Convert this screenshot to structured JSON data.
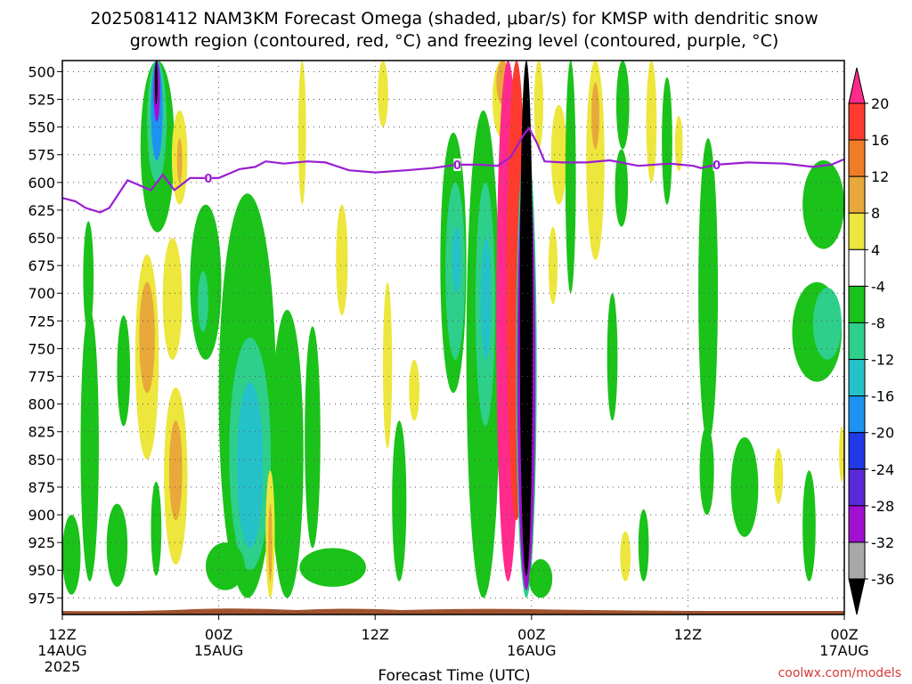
{
  "chart_data": {
    "type": "heatmap",
    "title_line1": "2025081412 NAM3KM Forecast Omega (shaded, μbar/s) for KMSP with dendritic snow",
    "title_line2": "growth region (contoured, red, °C) and freezing level (contoured, purple, °C)",
    "xlabel": "Forecast Time (UTC)",
    "credit": "coolwx.com/models",
    "y_axis": {
      "reversed": true,
      "ylim": [
        490,
        990
      ],
      "ticks": [
        500,
        525,
        550,
        575,
        600,
        625,
        650,
        675,
        700,
        725,
        750,
        775,
        800,
        825,
        850,
        875,
        900,
        925,
        950,
        975
      ]
    },
    "x_axis": {
      "xlim_hours": [
        0,
        60
      ],
      "ticks": [
        {
          "hour": 0,
          "lines": [
            "12Z",
            "14AUG",
            "2025"
          ]
        },
        {
          "hour": 12,
          "lines": [
            "00Z",
            "15AUG"
          ]
        },
        {
          "hour": 24,
          "lines": [
            "12Z"
          ]
        },
        {
          "hour": 36,
          "lines": [
            "00Z",
            "16AUG"
          ]
        },
        {
          "hour": 48,
          "lines": [
            "12Z"
          ]
        },
        {
          "hour": 60,
          "lines": [
            "00Z",
            "17AUG"
          ]
        }
      ]
    },
    "grid": true,
    "colorbar": {
      "labels": [
        "20",
        "16",
        "12",
        "8",
        "4",
        "-4",
        "-8",
        "-12",
        "-16",
        "-20",
        "-24",
        "-28",
        "-32",
        "-36"
      ],
      "bands": [
        {
          "from": 20,
          "to": 24,
          "color": "#ff2a8c"
        },
        {
          "from": 16,
          "to": 20,
          "color": "#ff3b30"
        },
        {
          "from": 12,
          "to": 16,
          "color": "#f07c28"
        },
        {
          "from": 8,
          "to": 12,
          "color": "#e8a83a"
        },
        {
          "from": 4,
          "to": 8,
          "color": "#ede63c"
        },
        {
          "from": -4,
          "to": 4,
          "color": "#ffffff"
        },
        {
          "from": -8,
          "to": -4,
          "color": "#1ac21a"
        },
        {
          "from": -12,
          "to": -8,
          "color": "#2ecf8a"
        },
        {
          "from": -16,
          "to": -12,
          "color": "#25c1c8"
        },
        {
          "from": -20,
          "to": -16,
          "color": "#1c93f2"
        },
        {
          "from": -24,
          "to": -20,
          "color": "#1f3ae6"
        },
        {
          "from": -28,
          "to": -24,
          "color": "#5a2ad8"
        },
        {
          "from": -32,
          "to": -28,
          "color": "#a010d0"
        },
        {
          "from": -36,
          "to": -32,
          "color": "#a8a8a8"
        },
        {
          "from": -40,
          "to": -36,
          "color": "#000000"
        }
      ]
    },
    "freezing_level": {
      "color": "#9a1ed2",
      "label": "0",
      "label_hours": [
        11.2,
        30.3,
        50.2
      ],
      "points": [
        [
          0,
          614
        ],
        [
          1.0,
          617
        ],
        [
          1.8,
          623
        ],
        [
          2.9,
          627
        ],
        [
          3.6,
          623
        ],
        [
          5.0,
          598
        ],
        [
          6.8,
          607
        ],
        [
          7.7,
          593
        ],
        [
          8.6,
          607
        ],
        [
          9.8,
          596
        ],
        [
          10.4,
          596
        ],
        [
          12.0,
          596
        ],
        [
          13.6,
          588
        ],
        [
          14.8,
          586
        ],
        [
          15.6,
          581
        ],
        [
          17.0,
          583
        ],
        [
          18.8,
          581
        ],
        [
          20.2,
          582
        ],
        [
          22.0,
          589
        ],
        [
          24.0,
          591
        ],
        [
          26.4,
          589
        ],
        [
          28.4,
          587
        ],
        [
          30.3,
          584
        ],
        [
          32.0,
          584
        ],
        [
          33.4,
          585
        ],
        [
          34.4,
          577
        ],
        [
          35.4,
          557
        ],
        [
          35.8,
          551
        ],
        [
          36.4,
          564
        ],
        [
          37.0,
          581
        ],
        [
          38.4,
          582
        ],
        [
          40.2,
          582
        ],
        [
          42.0,
          580
        ],
        [
          44.2,
          585
        ],
        [
          46.6,
          583
        ],
        [
          48.4,
          585
        ],
        [
          49.0,
          587
        ],
        [
          50.2,
          584
        ],
        [
          52.6,
          582
        ],
        [
          55.4,
          583
        ],
        [
          57.6,
          586
        ],
        [
          59.0,
          584
        ],
        [
          60.0,
          579
        ]
      ]
    },
    "omega_regions": [
      {
        "t0": 6.0,
        "t1": 8.6,
        "p0": 490,
        "p1": 645,
        "value": -6
      },
      {
        "t0": 6.5,
        "t1": 8.0,
        "p0": 490,
        "p1": 600,
        "value": -10
      },
      {
        "t0": 6.8,
        "t1": 7.7,
        "p0": 490,
        "p1": 580,
        "value": -18
      },
      {
        "t0": 7.0,
        "t1": 7.5,
        "p0": 490,
        "p1": 545,
        "value": -30
      },
      {
        "t0": 7.1,
        "t1": 7.3,
        "p0": 490,
        "p1": 530,
        "value": -38
      },
      {
        "t0": 8.4,
        "t1": 9.6,
        "p0": 535,
        "p1": 620,
        "value": 6
      },
      {
        "t0": 8.8,
        "t1": 9.2,
        "p0": 560,
        "p1": 600,
        "value": 10
      },
      {
        "t0": 7.7,
        "t1": 9.2,
        "p0": 650,
        "p1": 760,
        "value": 5
      },
      {
        "t0": 5.6,
        "t1": 7.4,
        "p0": 665,
        "p1": 850,
        "value": 6
      },
      {
        "t0": 5.9,
        "t1": 7.1,
        "p0": 690,
        "p1": 790,
        "value": 9
      },
      {
        "t0": 7.8,
        "t1": 9.6,
        "p0": 785,
        "p1": 945,
        "value": 5
      },
      {
        "t0": 8.2,
        "t1": 9.2,
        "p0": 815,
        "p1": 905,
        "value": 10
      },
      {
        "t0": 1.6,
        "t1": 2.4,
        "p0": 635,
        "p1": 735,
        "value": -6
      },
      {
        "t0": 1.4,
        "t1": 2.8,
        "p0": 715,
        "p1": 960,
        "value": -6
      },
      {
        "t0": 0,
        "t1": 1.4,
        "p0": 900,
        "p1": 972,
        "value": -6
      },
      {
        "t0": 3.4,
        "t1": 5.0,
        "p0": 890,
        "p1": 965,
        "value": -6
      },
      {
        "t0": 4.2,
        "t1": 5.2,
        "p0": 720,
        "p1": 820,
        "value": -6
      },
      {
        "t0": 6.8,
        "t1": 7.6,
        "p0": 870,
        "p1": 955,
        "value": -6
      },
      {
        "t0": 9.8,
        "t1": 12.2,
        "p0": 620,
        "p1": 760,
        "value": -6
      },
      {
        "t0": 10.4,
        "t1": 11.2,
        "p0": 680,
        "p1": 735,
        "value": -10
      },
      {
        "t0": 12.0,
        "t1": 16.4,
        "p0": 610,
        "p1": 975,
        "value": -6
      },
      {
        "t0": 12.8,
        "t1": 16.0,
        "p0": 740,
        "p1": 950,
        "value": -11
      },
      {
        "t0": 13.4,
        "t1": 15.4,
        "p0": 780,
        "p1": 930,
        "value": -15
      },
      {
        "t0": 16.0,
        "t1": 18.5,
        "p0": 715,
        "p1": 975,
        "value": -6
      },
      {
        "t0": 11.0,
        "t1": 14.0,
        "p0": 925,
        "p1": 968,
        "value": -6
      },
      {
        "t0": 18.2,
        "t1": 23.3,
        "p0": 930,
        "p1": 965,
        "value": -6
      },
      {
        "t0": 18.6,
        "t1": 19.8,
        "p0": 730,
        "p1": 930,
        "value": -6
      },
      {
        "t0": 15.6,
        "t1": 16.3,
        "p0": 860,
        "p1": 975,
        "value": 6
      },
      {
        "t0": 15.8,
        "t1": 16.1,
        "p0": 890,
        "p1": 960,
        "value": 10
      },
      {
        "t0": 18.1,
        "t1": 18.7,
        "p0": 490,
        "p1": 620,
        "value": 5
      },
      {
        "t0": 21.0,
        "t1": 21.9,
        "p0": 620,
        "p1": 720,
        "value": 5
      },
      {
        "t0": 24.2,
        "t1": 25.0,
        "p0": 490,
        "p1": 550,
        "value": 5
      },
      {
        "t0": 24.6,
        "t1": 25.3,
        "p0": 690,
        "p1": 840,
        "value": 5
      },
      {
        "t0": 25.3,
        "t1": 26.4,
        "p0": 815,
        "p1": 960,
        "value": -6
      },
      {
        "t0": 26.6,
        "t1": 27.4,
        "p0": 760,
        "p1": 815,
        "value": 5
      },
      {
        "t0": 29.0,
        "t1": 31.0,
        "p0": 555,
        "p1": 790,
        "value": -6
      },
      {
        "t0": 29.4,
        "t1": 30.9,
        "p0": 600,
        "p1": 760,
        "value": -10
      },
      {
        "t0": 29.9,
        "t1": 30.6,
        "p0": 640,
        "p1": 700,
        "value": -14
      },
      {
        "t0": 31.0,
        "t1": 33.6,
        "p0": 535,
        "p1": 975,
        "value": -6
      },
      {
        "t0": 31.7,
        "t1": 33.2,
        "p0": 600,
        "p1": 820,
        "value": -10
      },
      {
        "t0": 32.1,
        "t1": 32.9,
        "p0": 650,
        "p1": 760,
        "value": -14
      },
      {
        "t0": 33.0,
        "t1": 34.5,
        "p0": 490,
        "p1": 560,
        "value": 6
      },
      {
        "t0": 33.3,
        "t1": 34.3,
        "p0": 490,
        "p1": 530,
        "value": 10
      },
      {
        "t0": 33.3,
        "t1": 35.1,
        "p0": 490,
        "p1": 960,
        "value": 22
      },
      {
        "t0": 34.1,
        "t1": 35.6,
        "p0": 490,
        "p1": 905,
        "value": 18
      },
      {
        "t0": 34.8,
        "t1": 36.4,
        "p0": 560,
        "p1": 975,
        "value": -12
      },
      {
        "t0": 34.9,
        "t1": 36.3,
        "p0": 570,
        "p1": 968,
        "value": -30
      },
      {
        "t0": 35.1,
        "t1": 36.1,
        "p0": 490,
        "p1": 955,
        "value": -38
      },
      {
        "t0": 35.8,
        "t1": 37.6,
        "p0": 940,
        "p1": 975,
        "value": -6
      },
      {
        "t0": 36.2,
        "t1": 36.9,
        "p0": 490,
        "p1": 570,
        "value": 6
      },
      {
        "t0": 37.3,
        "t1": 38.0,
        "p0": 640,
        "p1": 710,
        "value": 5
      },
      {
        "t0": 37.5,
        "t1": 38.7,
        "p0": 530,
        "p1": 620,
        "value": 5
      },
      {
        "t0": 38.6,
        "t1": 39.4,
        "p0": 490,
        "p1": 700,
        "value": -6
      },
      {
        "t0": 40.2,
        "t1": 41.6,
        "p0": 490,
        "p1": 670,
        "value": 5
      },
      {
        "t0": 40.6,
        "t1": 41.2,
        "p0": 510,
        "p1": 570,
        "value": 10
      },
      {
        "t0": 41.8,
        "t1": 42.6,
        "p0": 700,
        "p1": 815,
        "value": -6
      },
      {
        "t0": 42.5,
        "t1": 43.5,
        "p0": 490,
        "p1": 570,
        "value": -6
      },
      {
        "t0": 42.4,
        "t1": 43.4,
        "p0": 570,
        "p1": 640,
        "value": -6
      },
      {
        "t0": 44.8,
        "t1": 45.6,
        "p0": 490,
        "p1": 600,
        "value": 5
      },
      {
        "t0": 42.8,
        "t1": 43.6,
        "p0": 915,
        "p1": 960,
        "value": 6
      },
      {
        "t0": 46.0,
        "t1": 46.8,
        "p0": 505,
        "p1": 620,
        "value": -6
      },
      {
        "t0": 47.0,
        "t1": 47.6,
        "p0": 540,
        "p1": 590,
        "value": 5
      },
      {
        "t0": 44.2,
        "t1": 45.0,
        "p0": 895,
        "p1": 960,
        "value": -6
      },
      {
        "t0": 48.8,
        "t1": 50.3,
        "p0": 560,
        "p1": 835,
        "value": -6
      },
      {
        "t0": 48.9,
        "t1": 50.0,
        "p0": 820,
        "p1": 900,
        "value": -6
      },
      {
        "t0": 51.3,
        "t1": 53.4,
        "p0": 830,
        "p1": 920,
        "value": -6
      },
      {
        "t0": 54.6,
        "t1": 55.3,
        "p0": 840,
        "p1": 890,
        "value": 5
      },
      {
        "t0": 56.0,
        "t1": 59.8,
        "p0": 690,
        "p1": 780,
        "value": -6
      },
      {
        "t0": 57.6,
        "t1": 59.8,
        "p0": 695,
        "p1": 760,
        "value": -10
      },
      {
        "t0": 56.8,
        "t1": 60.0,
        "p0": 580,
        "p1": 660,
        "value": -6
      },
      {
        "t0": 56.8,
        "t1": 57.8,
        "p0": 860,
        "p1": 960,
        "value": -6
      },
      {
        "t0": 59.6,
        "t1": 60.0,
        "p0": 820,
        "p1": 870,
        "value": 5
      }
    ]
  }
}
